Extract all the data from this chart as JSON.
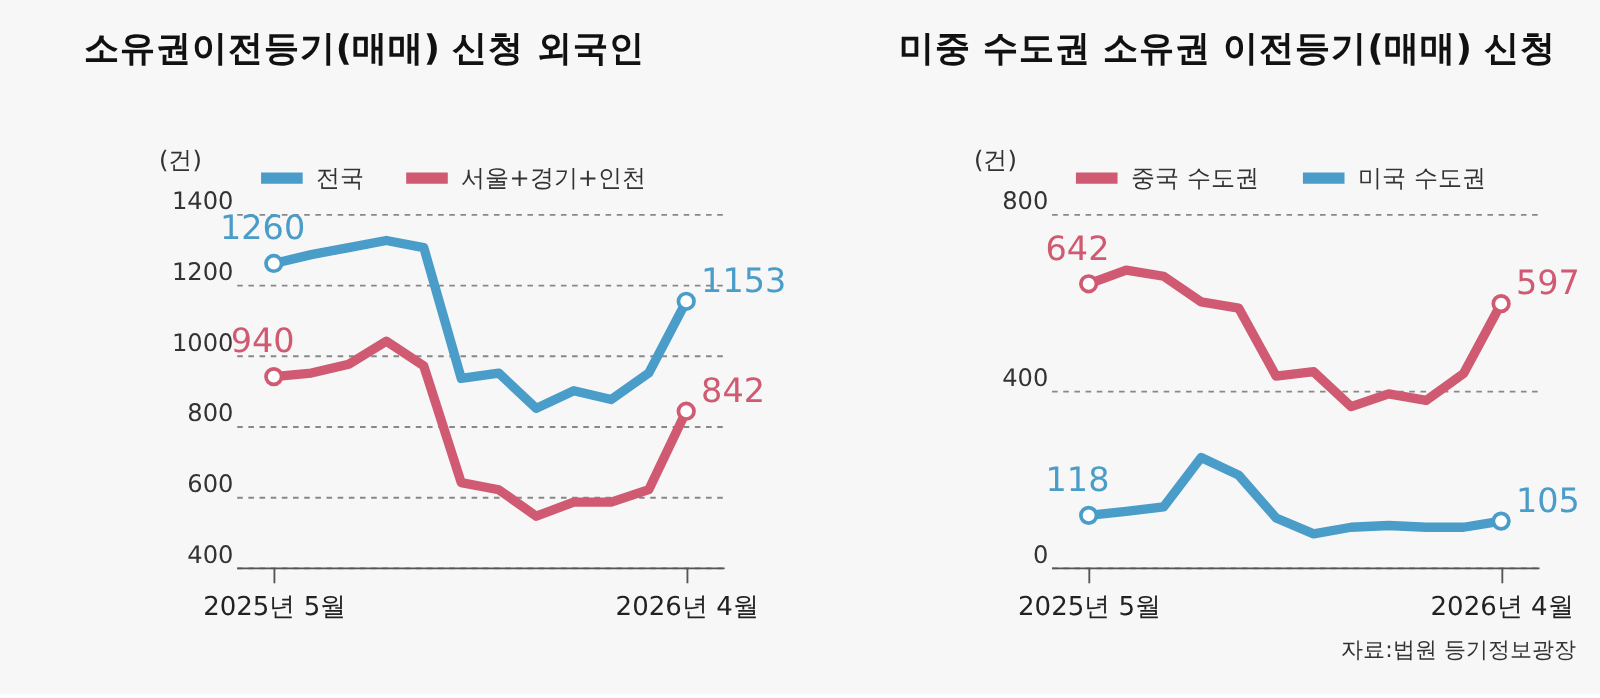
{
  "chart_data": [
    {
      "type": "line",
      "title": "소유권이전등기(매매) 신청 외국인",
      "ylabel": "(건)",
      "categories": [
        "2025년 5월",
        null,
        null,
        null,
        null,
        null,
        null,
        null,
        null,
        null,
        null,
        "2026년 4월"
      ],
      "ylim": [
        400,
        1400
      ],
      "yticks": [
        400,
        600,
        800,
        1000,
        1200,
        1400
      ],
      "grid": "y",
      "legend": "top left",
      "series": [
        {
          "name": "전국",
          "color": "#4a9cc9",
          "values": [
            1260,
            1285,
            1305,
            1325,
            1305,
            935,
            950,
            850,
            900,
            875,
            950,
            1153
          ],
          "value_labels": [
            "1260",
            null,
            null,
            null,
            null,
            null,
            null,
            null,
            null,
            null,
            null,
            "1153"
          ]
        },
        {
          "name": "서울+경기+인천",
          "color": "#d05a72",
          "values": [
            940,
            950,
            975,
            1040,
            970,
            640,
            620,
            545,
            585,
            585,
            620,
            842
          ],
          "value_labels": [
            "940",
            null,
            null,
            null,
            null,
            null,
            null,
            null,
            null,
            null,
            null,
            "842"
          ]
        }
      ]
    },
    {
      "type": "line",
      "title": "미중 수도권 소유권 이전등기(매매) 신청",
      "ylabel": "(건)",
      "categories": [
        "2025년 5월",
        null,
        null,
        null,
        null,
        null,
        null,
        null,
        null,
        null,
        null,
        "2026년 4월"
      ],
      "ylim": [
        0,
        800
      ],
      "yticks": [
        0,
        400,
        800
      ],
      "grid": "y",
      "legend": "top left",
      "annotations": [
        "자료:법원 등기정보광장"
      ],
      "series": [
        {
          "name": "중국 수도권",
          "color": "#d05a72",
          "values": [
            642,
            673,
            659,
            601,
            587,
            433,
            443,
            364,
            393,
            378,
            439,
            597
          ],
          "value_labels": [
            "642",
            null,
            null,
            null,
            null,
            null,
            null,
            null,
            null,
            null,
            null,
            "597"
          ]
        },
        {
          "name": "미국 수도권",
          "color": "#4a9cc9",
          "values": [
            118,
            127,
            137,
            249,
            209,
            112,
            76,
            91,
            95,
            91,
            91,
            105
          ],
          "value_labels": [
            "118",
            null,
            null,
            null,
            null,
            null,
            null,
            null,
            null,
            null,
            null,
            "105"
          ]
        }
      ]
    }
  ]
}
